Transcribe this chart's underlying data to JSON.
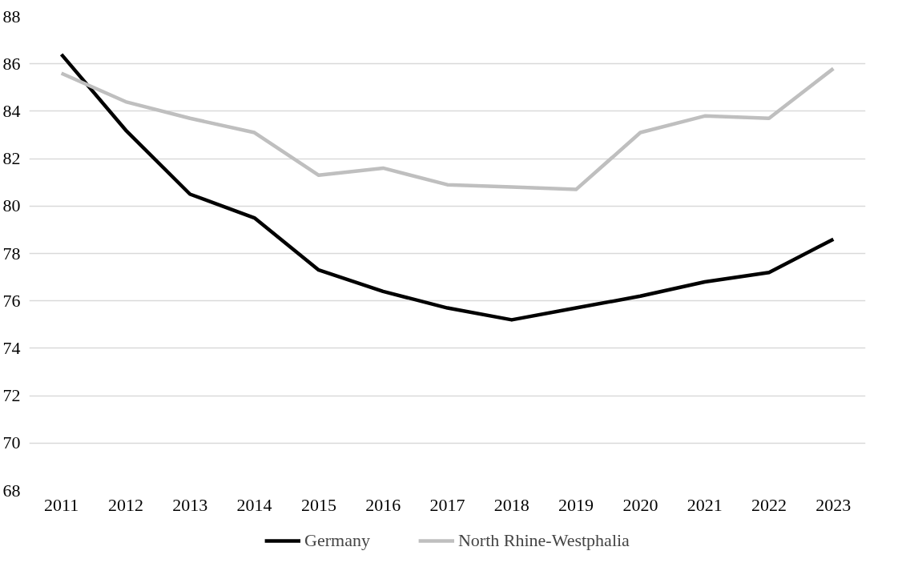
{
  "chart_data": {
    "type": "line",
    "categories": [
      "2011",
      "2012",
      "2013",
      "2014",
      "2015",
      "2016",
      "2017",
      "2018",
      "2019",
      "2020",
      "2021",
      "2022",
      "2023"
    ],
    "series": [
      {
        "name": "Germany",
        "color": "#000000",
        "values": [
          86.4,
          83.2,
          80.5,
          79.5,
          77.3,
          76.4,
          75.7,
          75.2,
          75.7,
          76.2,
          76.8,
          77.2,
          78.6
        ]
      },
      {
        "name": "North Rhine-Westphalia",
        "color": "#bfbfbf",
        "values": [
          85.6,
          84.4,
          83.7,
          83.1,
          81.3,
          81.6,
          80.9,
          80.8,
          80.7,
          83.1,
          83.8,
          83.7,
          85.8
        ]
      }
    ],
    "ylim": [
      68,
      88
    ],
    "yticks": [
      68,
      70,
      72,
      74,
      76,
      78,
      80,
      82,
      84,
      86,
      88
    ],
    "grid": "y",
    "legend": "bottom",
    "marker": "none",
    "line_style": "solid"
  }
}
